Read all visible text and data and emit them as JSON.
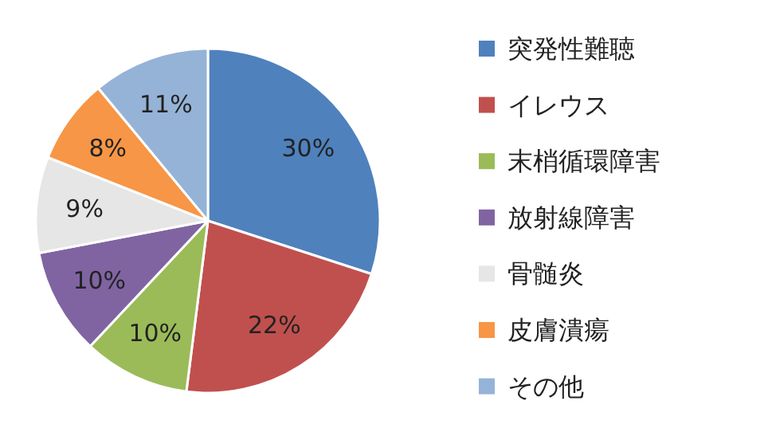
{
  "chart_data": {
    "type": "pie",
    "categories": [
      "突発性難聴",
      "イレウス",
      "末梢循環障害",
      "放射線障害",
      "骨髄炎",
      "皮膚潰瘍",
      "その他"
    ],
    "values": [
      30,
      22,
      10,
      10,
      9,
      8,
      11
    ],
    "colors": [
      "#4f81bd",
      "#c0504d",
      "#9bbb59",
      "#8064a2",
      "#e6e6e6",
      "#f79646",
      "#95b3d7"
    ],
    "value_labels": [
      "30%",
      "22%",
      "10%",
      "10%",
      "9%",
      "8%",
      "11%"
    ],
    "legend": "right"
  }
}
